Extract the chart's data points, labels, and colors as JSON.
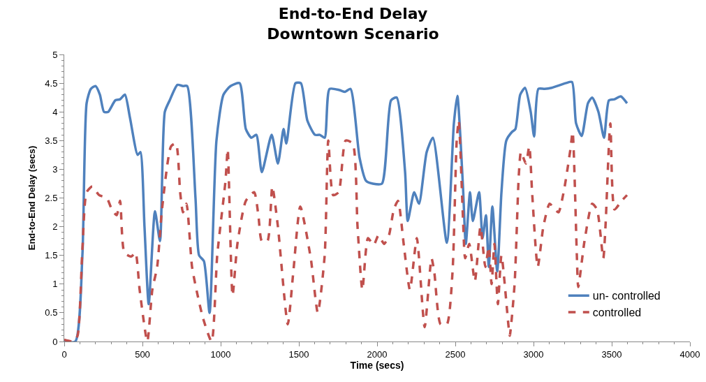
{
  "chart_data": {
    "type": "line",
    "title": "End-to-End Delay\nDowntown Scenario",
    "xlabel": "Time (secs)",
    "ylabel": "End-to-End Delay (secs)",
    "xlim": [
      0,
      4000
    ],
    "xticks": [
      0,
      500,
      1000,
      1500,
      2000,
      2500,
      3000,
      3500,
      4000
    ],
    "ylim": [
      0,
      5
    ],
    "yticks": [
      0,
      0.5,
      1,
      1.5,
      2,
      2.5,
      3,
      3.5,
      4,
      4.5,
      5
    ],
    "grid": false,
    "legend": "bottom right",
    "marker": "none",
    "series": [
      {
        "name": "un- controlled",
        "color": "#4f81bd",
        "line_style": "solid",
        "x": [
          0,
          71,
          116,
          143,
          170,
          200,
          228,
          254,
          281,
          326,
          357,
          388,
          420,
          469,
          487,
          513,
          540,
          580,
          612,
          643,
          674,
          723,
          759,
          786,
          839,
          862,
          893,
          929,
          973,
          1018,
          1063,
          1121,
          1161,
          1196,
          1228,
          1263,
          1326,
          1366,
          1402,
          1420,
          1478,
          1513,
          1554,
          1603,
          1634,
          1665,
          1696,
          1759,
          1795,
          1830,
          1888,
          1929,
          1973,
          2031,
          2089,
          2125,
          2179,
          2196,
          2237,
          2268,
          2317,
          2357,
          2446,
          2491,
          2513,
          2549,
          2567,
          2594,
          2612,
          2652,
          2674,
          2696,
          2714,
          2737,
          2768,
          2795,
          2826,
          2862,
          2884,
          2915,
          2946,
          2982,
          3004,
          3031,
          3071,
          3116,
          3205,
          3246,
          3272,
          3308,
          3348,
          3375,
          3415,
          3451,
          3482,
          3518,
          3558,
          3598
        ],
        "values": [
          0,
          0,
          1.5,
          4.15,
          4.4,
          4.45,
          4.3,
          4,
          4,
          4.2,
          4.22,
          4.3,
          3.9,
          3.25,
          3.3,
          2,
          0.65,
          2.27,
          1.75,
          4,
          4.2,
          4.47,
          4.45,
          4.45,
          2.5,
          1.5,
          1.4,
          0.5,
          3.5,
          4.3,
          4.45,
          4.5,
          3.7,
          3.55,
          3.6,
          2.95,
          3.6,
          3.1,
          3.7,
          3.45,
          4.5,
          4.5,
          3.85,
          3.6,
          3.6,
          3.55,
          4.4,
          4.38,
          4.35,
          4.4,
          3.2,
          2.8,
          2.75,
          2.75,
          4.2,
          4.25,
          2.95,
          2.1,
          2.6,
          2.4,
          3.3,
          3.55,
          1.72,
          3.8,
          4.28,
          2.7,
          1.7,
          2.6,
          2.1,
          2.6,
          1.8,
          2.2,
          1.3,
          2.35,
          1.22,
          2.6,
          3.5,
          3.65,
          3.7,
          4.3,
          4.42,
          4,
          3.57,
          4.4,
          4.4,
          4.42,
          4.5,
          4.52,
          3.8,
          3.58,
          4.15,
          4.25,
          4,
          3.55,
          4.2,
          4.22,
          4.27,
          4.15
        ]
      },
      {
        "name": "controlled",
        "color": "#c0504d",
        "line_style": "dashed",
        "x": [
          0,
          60,
          85,
          116,
          143,
          179,
          223,
          272,
          304,
          335,
          357,
          384,
          429,
          455,
          482,
          531,
          563,
          594,
          625,
          683,
          714,
          741,
          759,
          781,
          817,
          853,
          888,
          942,
          978,
          1031,
          1045,
          1076,
          1107,
          1161,
          1214,
          1241,
          1263,
          1299,
          1330,
          1366,
          1429,
          1464,
          1509,
          1576,
          1621,
          1665,
          1688,
          1719,
          1754,
          1799,
          1844,
          1875,
          1906,
          1942,
          1978,
          2009,
          2045,
          2076,
          2107,
          2134,
          2170,
          2210,
          2254,
          2304,
          2348,
          2366,
          2406,
          2446,
          2482,
          2509,
          2522,
          2549,
          2563,
          2589,
          2625,
          2661,
          2692,
          2714,
          2732,
          2750,
          2772,
          2795,
          2839,
          2848,
          2879,
          2906,
          2920,
          2951,
          2973,
          2991,
          3027,
          3063,
          3103,
          3138,
          3160,
          3196,
          3236,
          3250,
          3277,
          3286,
          3326,
          3375,
          3406,
          3446,
          3460,
          3491,
          3518,
          3563,
          3598
        ],
        "values": [
          0.03,
          0,
          0.1,
          1.6,
          2.6,
          2.7,
          2.55,
          2.5,
          2.3,
          2.2,
          2.45,
          1.55,
          1.48,
          1.55,
          0.9,
          0,
          0.9,
          1.3,
          2.3,
          3.4,
          3.45,
          2.6,
          2.25,
          2.4,
          1.3,
          0.8,
          0.4,
          0,
          1.5,
          2.8,
          3.35,
          0.8,
          1.7,
          2.45,
          2.6,
          2.2,
          1.75,
          1.75,
          2.7,
          2,
          0.3,
          1.2,
          2.35,
          1.45,
          0.5,
          1.5,
          3.5,
          2.55,
          2.6,
          3.5,
          3.45,
          2,
          0.9,
          1.8,
          1.68,
          1.85,
          1.7,
          1.85,
          2.3,
          2.45,
          1.7,
          0.9,
          1.8,
          0.25,
          1.45,
          1.2,
          0.3,
          0.3,
          1.2,
          3.5,
          3.85,
          2.15,
          1.45,
          1.7,
          1.05,
          2,
          1.3,
          1.65,
          1,
          1.7,
          0.65,
          1.5,
          0.3,
          0.1,
          1,
          2.9,
          3.3,
          3.1,
          3.4,
          2.6,
          1.3,
          2,
          2.4,
          2.3,
          2.25,
          2.65,
          3.35,
          3.65,
          1.5,
          0.95,
          1.75,
          2.4,
          2.3,
          1.45,
          2,
          3.8,
          2.3,
          2.45,
          2.55
        ]
      }
    ]
  }
}
